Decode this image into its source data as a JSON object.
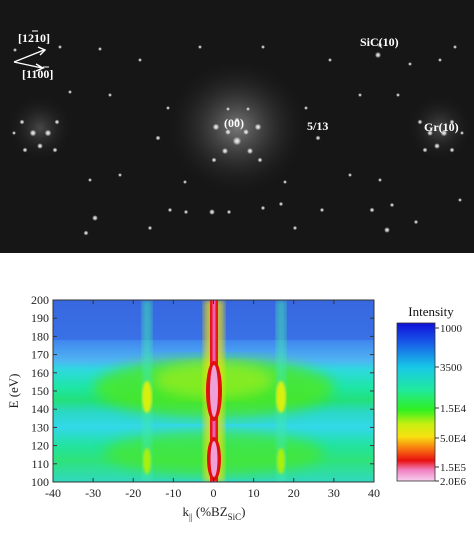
{
  "leed": {
    "labels": {
      "dir_a": "[1210]",
      "dir_b": "[1100]",
      "sic10": "SiC(10)",
      "spot00": "(00)",
      "frac": "5/13",
      "gr10": "Gr(10)"
    }
  },
  "chart_data": {
    "type": "heatmap",
    "title": "",
    "xlabel_main": "k",
    "xlabel_sub": "||",
    "xlabel_rest": " (%BZ",
    "xlabel_sub2": "SiC",
    "xlabel_end": ")",
    "ylabel": "E (eV)",
    "xlim": [
      -40,
      40
    ],
    "ylim": [
      100,
      200
    ],
    "x_ticks": [
      "-40",
      "-30",
      "-20",
      "-10",
      "0",
      "10",
      "20",
      "30",
      "40"
    ],
    "y_ticks": [
      "100",
      "110",
      "120",
      "130",
      "140",
      "150",
      "160",
      "170",
      "180",
      "190",
      "200"
    ],
    "features": {
      "central_rod_k": 0,
      "side_rods_k": [
        -16.5,
        16.5
      ],
      "bright_energies_eV": [
        112,
        146
      ]
    },
    "colorbar": {
      "title": "Intensity",
      "labels": [
        "1000",
        "3500",
        "1.5E4",
        "5.0E4",
        "1.5E5",
        "2.0E6"
      ]
    }
  }
}
